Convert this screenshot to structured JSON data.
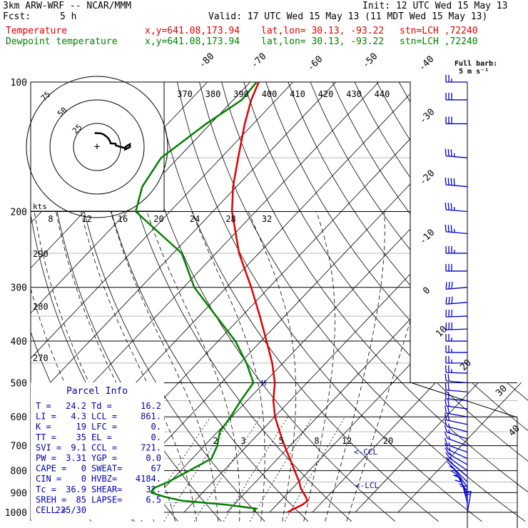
{
  "header": {
    "model": "3km ARW-WRF -- NCAR/MMM",
    "init": "Init: 12 UTC Wed 15 May 13",
    "fcst_label": "Fcst:",
    "fcst_value": "5 h",
    "valid": "Valid: 17 UTC Wed 15 May 13 (11 MDT Wed 15 May 13)",
    "temp_label": "Temperature",
    "dew_label": "Dewpoint temperature",
    "xy": "x,y=641.08,173.94",
    "latlon": "lat,lon= 30.13, -93.22",
    "stn": "stn=LCH ,72240"
  },
  "barb_legend": {
    "line1": "Full barb:",
    "line2": "5 m s⁻¹"
  },
  "hodograph": {
    "rings": [
      "75",
      "50",
      "25"
    ],
    "units": "kts"
  },
  "parcel_info": {
    "title": "Parcel Info",
    "rows": [
      [
        "T  =",
        "24.2",
        "Td =",
        "16.2"
      ],
      [
        "LI =",
        "4.3",
        "LCL =",
        "861."
      ],
      [
        "K  =",
        "19",
        "LFC =",
        "0."
      ],
      [
        "TT =",
        "35",
        "EL  =",
        "0."
      ],
      [
        "SVI =",
        "9.1",
        "CCL =",
        "721."
      ],
      [
        "PW =",
        "3.31",
        "YGP =",
        "0.0"
      ],
      [
        "CAPE =",
        "0",
        "SWEAT=",
        "67"
      ],
      [
        "CIN =",
        "0",
        "HVBZ=",
        "4184."
      ],
      [
        "Tc =",
        "36.9",
        "SHEAR=",
        "32."
      ],
      [
        "SREH =",
        "85",
        "LAPSE=",
        "6.5"
      ],
      [
        "CELL =",
        "225/30",
        "",
        ""
      ]
    ]
  },
  "labels": {
    "m": "M",
    "ccl": "<-CCL",
    "lcl": "<-LCL"
  },
  "chart_data": {
    "type": "line",
    "title": "",
    "ylabel": "",
    "xlabel": "",
    "y_log_pressure": true,
    "ylim": [
      1000,
      100
    ],
    "pressure_ticks": [
      100,
      200,
      300,
      400,
      500,
      600,
      700,
      800,
      900,
      1000
    ],
    "isotherm_labels": [
      -80,
      -70,
      -60,
      -50,
      -40,
      -30,
      -20,
      -10,
      0,
      10,
      20,
      30,
      40
    ],
    "theta_labels_top": [
      370,
      380,
      390,
      400,
      410,
      420,
      430,
      440
    ],
    "theta_labels_left": [
      290,
      280,
      270
    ],
    "theta_e_labels": [
      8,
      12,
      16,
      20,
      24,
      28,
      32
    ],
    "mixing_ratio_labels": [
      2,
      3,
      5,
      8,
      12,
      20
    ],
    "series": [
      {
        "name": "Temperature",
        "color": "#e00000",
        "p": [
          1000,
          980,
          960,
          940,
          920,
          900,
          880,
          850,
          800,
          750,
          700,
          650,
          600,
          550,
          500,
          450,
          400,
          350,
          300,
          250,
          200,
          175,
          150,
          125,
          110,
          100
        ],
        "t": [
          24.2,
          25.0,
          26.0,
          26.3,
          25.0,
          23.5,
          22.0,
          20.2,
          16.6,
          12.8,
          8.7,
          4.5,
          0.1,
          -3.9,
          -7.5,
          -12.5,
          -18.7,
          -25.8,
          -34.2,
          -44.6,
          -55.5,
          -60.8,
          -66.0,
          -72.0,
          -75.8,
          -78.0
        ]
      },
      {
        "name": "Dewpoint temperature",
        "color": "#008000",
        "p": [
          1000,
          980,
          960,
          940,
          920,
          900,
          880,
          850,
          800,
          750,
          700,
          650,
          600,
          550,
          500,
          450,
          400,
          350,
          300,
          250,
          200,
          175,
          150,
          125,
          110,
          100
        ],
        "t": [
          16.2,
          16.0,
          8.0,
          -3.0,
          -8.0,
          -12.0,
          -12.5,
          -10.4,
          -8.0,
          -5.5,
          -7.0,
          -9.5,
          -10.3,
          -11.5,
          -12.5,
          -18.5,
          -26.0,
          -36.0,
          -47.5,
          -58.0,
          -78.0,
          -82.0,
          -84.0,
          -81.0,
          -78.0,
          -78.5
        ]
      }
    ],
    "wind_barbs": {
      "description": "direction deg / speed kt",
      "p": [
        1000,
        975,
        950,
        925,
        900,
        875,
        850,
        825,
        800,
        775,
        750,
        725,
        700,
        675,
        650,
        625,
        600,
        575,
        550,
        525,
        500,
        475,
        450,
        425,
        400,
        375,
        350,
        325,
        300,
        275,
        250,
        225,
        200,
        175,
        150,
        125,
        110,
        100
      ],
      "dir": [
        170,
        180,
        195,
        200,
        210,
        215,
        225,
        230,
        235,
        240,
        245,
        250,
        250,
        252,
        255,
        258,
        260,
        262,
        265,
        265,
        265,
        268,
        270,
        270,
        270,
        272,
        272,
        275,
        275,
        270,
        270,
        265,
        265,
        265,
        265,
        270,
        270,
        270
      ],
      "spd": [
        15,
        15,
        15,
        10,
        15,
        15,
        15,
        15,
        15,
        15,
        15,
        15,
        15,
        15,
        15,
        20,
        20,
        20,
        20,
        20,
        20,
        25,
        25,
        25,
        25,
        30,
        30,
        30,
        30,
        30,
        35,
        35,
        35,
        40,
        35,
        30,
        30,
        25
      ]
    }
  }
}
